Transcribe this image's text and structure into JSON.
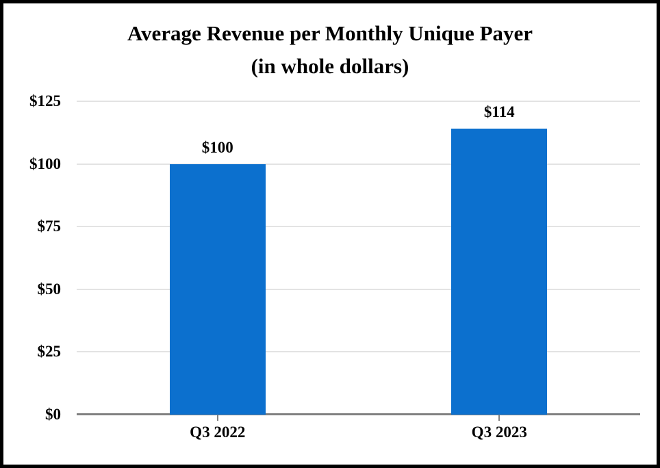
{
  "chart_data": {
    "type": "bar",
    "title": "Average Revenue per Monthly Unique Payer",
    "subtitle": "(in whole dollars)",
    "categories": [
      "Q3 2022",
      "Q3 2023"
    ],
    "values": [
      100,
      114
    ],
    "value_labels": [
      "$100",
      "$114"
    ],
    "ylim": [
      0,
      125
    ],
    "yticks": [
      0,
      25,
      50,
      75,
      100,
      125
    ],
    "ytick_labels": [
      "$0",
      "$25",
      "$50",
      "$75",
      "$100",
      "$125"
    ],
    "grid": true,
    "legend": "none",
    "colors": {
      "bar": "#0C70CE",
      "gridline": "#E3E3E3",
      "axis": "#808080",
      "text": "#000000",
      "frame_border": "#000000",
      "background": "#FFFFFF"
    }
  }
}
